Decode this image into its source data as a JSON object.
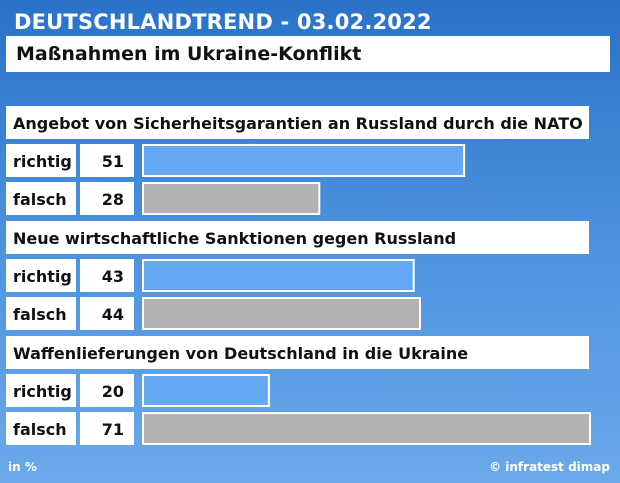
{
  "header": {
    "title": "DEUTSCHLANDTREND - 03.02.2022",
    "subtitle": "Maßnahmen im Ukraine-Konflikt"
  },
  "footer": {
    "unit": "in %",
    "source": "© infratest dimap"
  },
  "colors": {
    "richtig": "#64a8f3",
    "falsch": "#b2b2b2"
  },
  "chart_data": {
    "type": "bar",
    "orientation": "horizontal",
    "scale_max": 71,
    "groups": [
      {
        "title": "Angebot von Sicherheitsgarantien an Russland durch die NATO",
        "rows": [
          {
            "label": "richtig",
            "value": 51
          },
          {
            "label": "falsch",
            "value": 28
          }
        ]
      },
      {
        "title": "Neue wirtschaftliche Sanktionen gegen Russland",
        "rows": [
          {
            "label": "richtig",
            "value": 43
          },
          {
            "label": "falsch",
            "value": 44
          }
        ]
      },
      {
        "title": "Waffenlieferungen von Deutschland in die Ukraine",
        "rows": [
          {
            "label": "richtig",
            "value": 20
          },
          {
            "label": "falsch",
            "value": 71
          }
        ]
      }
    ]
  }
}
